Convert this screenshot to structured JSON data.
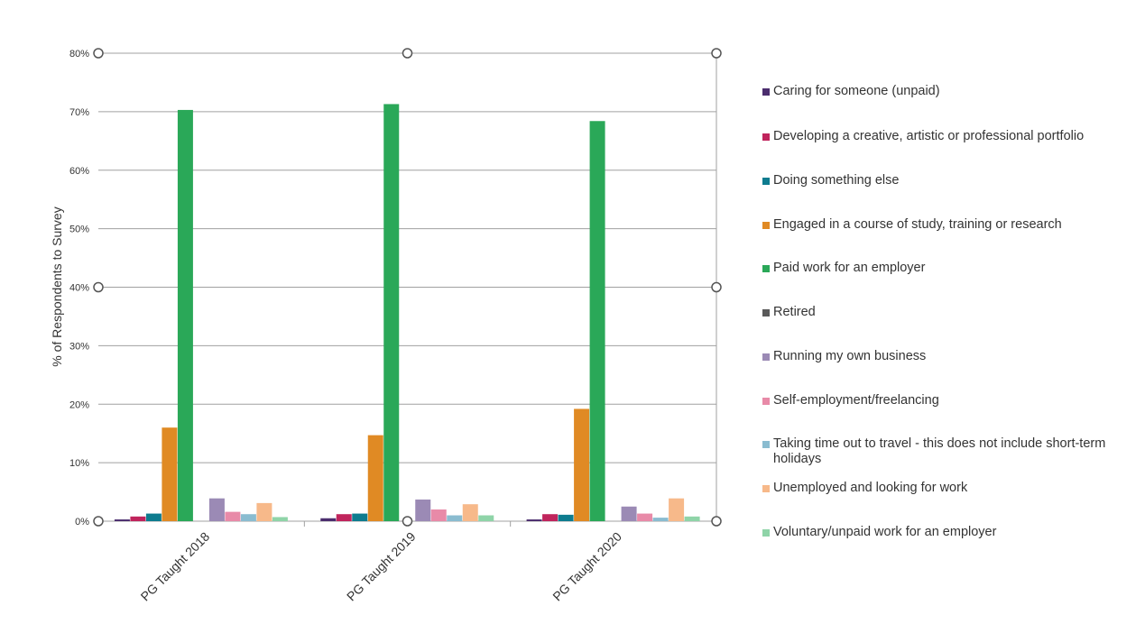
{
  "chart_data": {
    "type": "bar",
    "title": "",
    "xlabel": "",
    "ylabel": "% of Respondents to Survey",
    "ylim": [
      0,
      80
    ],
    "yticks": [
      "0%",
      "10%",
      "20%",
      "30%",
      "40%",
      "50%",
      "60%",
      "70%",
      "80%"
    ],
    "grid": true,
    "legend_placement": "right",
    "categories": [
      "PG Taught 2018",
      "PG Taught 2019",
      "PG Taught 2020"
    ],
    "series": [
      {
        "name": "Caring for someone (unpaid)",
        "color": "#4b2d6e",
        "values": [
          0.3,
          0.5,
          0.3
        ]
      },
      {
        "name": "Developing a creative, artistic or professional portfolio",
        "color": "#c0245c",
        "values": [
          0.8,
          1.2,
          1.2
        ]
      },
      {
        "name": "Doing something else",
        "color": "#0e7c8f",
        "values": [
          1.3,
          1.3,
          1.1
        ]
      },
      {
        "name": "Engaged in a course of study, training or research",
        "color": "#e08a24",
        "values": [
          16.0,
          14.7,
          19.2
        ]
      },
      {
        "name": "Paid work for an employer",
        "color": "#2aa858",
        "values": [
          70.3,
          71.3,
          68.4
        ]
      },
      {
        "name": "Retired",
        "color": "#5a5a5a",
        "values": [
          0,
          0,
          0
        ]
      },
      {
        "name": "Running my own business",
        "color": "#9b8ab5",
        "values": [
          3.9,
          3.7,
          2.5
        ]
      },
      {
        "name": "Self-employment/freelancing",
        "color": "#e88aa8",
        "values": [
          1.6,
          2.0,
          1.3
        ]
      },
      {
        "name": "Taking time out to travel - this does not include short-term holidays",
        "color": "#8abcd0",
        "values": [
          1.2,
          1.0,
          0.6
        ]
      },
      {
        "name": "Unemployed and looking for work",
        "color": "#f7b98a",
        "values": [
          3.1,
          2.9,
          3.9
        ]
      },
      {
        "name": "Voluntary/unpaid work for an employer",
        "color": "#8fd4a8",
        "values": [
          0.7,
          1.0,
          0.8
        ]
      }
    ]
  }
}
